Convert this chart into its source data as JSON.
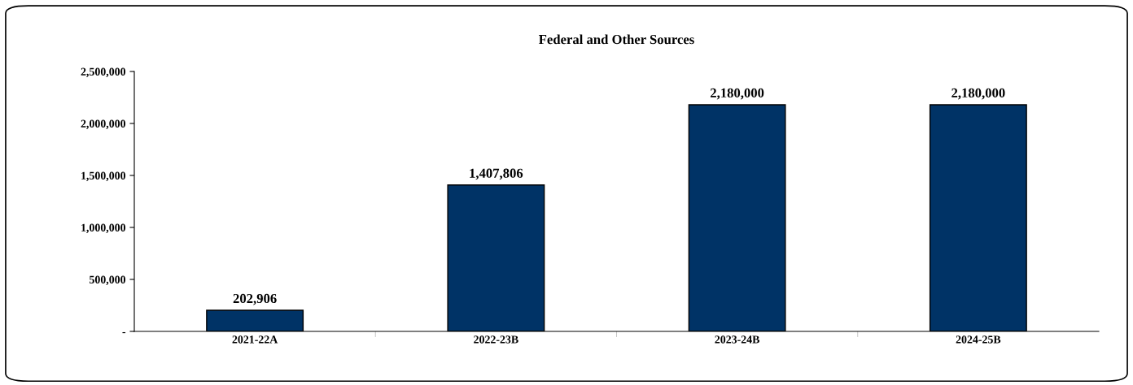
{
  "chart_data": {
    "type": "bar",
    "title": "Federal and Other Sources",
    "categories": [
      "2021-22A",
      "2022-23B",
      "2023-24B",
      "2024-25B"
    ],
    "values": [
      202906,
      1407806,
      2180000,
      2180000
    ],
    "value_labels": [
      "202,906",
      "1,407,806",
      "2,180,000",
      "2,180,000"
    ],
    "color": "#003366",
    "ylim": [
      0,
      2500000
    ],
    "yticks": [
      {
        "value": 0,
        "label": "-"
      },
      {
        "value": 500000,
        "label": "500,000"
      },
      {
        "value": 1000000,
        "label": "1,000,000"
      },
      {
        "value": 1500000,
        "label": "1,500,000"
      },
      {
        "value": 2000000,
        "label": "2,000,000"
      },
      {
        "value": 2500000,
        "label": "2,500,000"
      }
    ],
    "grid": false,
    "legend": false
  }
}
